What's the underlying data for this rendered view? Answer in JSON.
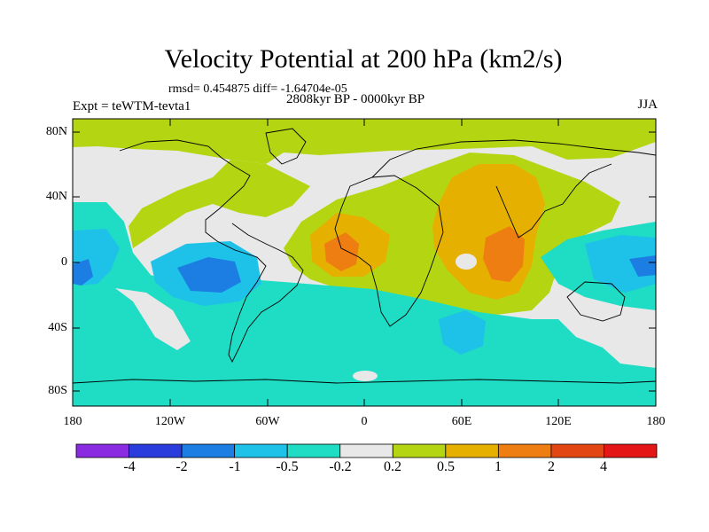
{
  "figure": {
    "title": "Velocity Potential at 200 hPa (km2/s)",
    "stats": "rmsd= 0.454875  diff= -1.64704e-05",
    "experiment": "Expt = teWTM-tevta1",
    "period": "2808kyr BP - 0000kyr BP",
    "season": "JJA"
  },
  "map": {
    "projection": "cylindrical equidistant",
    "lon_range": [
      -180,
      180
    ],
    "lat_range": [
      -90,
      90
    ],
    "lat_labels": [
      "80N",
      "40N",
      "0",
      "40S",
      "80S"
    ],
    "lon_labels": [
      "180",
      "120W",
      "60W",
      "0",
      "60E",
      "120E",
      "180"
    ],
    "field": "velocity potential difference",
    "units": "km2/s"
  },
  "colorbar": {
    "colors": [
      "#8a2be2",
      "#2a3cdc",
      "#1c7de2",
      "#1ec1e8",
      "#1fdcc4",
      "#e8e8e8",
      "#b4d612",
      "#e6b000",
      "#ee7d12",
      "#e24613",
      "#e51616"
    ],
    "labels": [
      "-4",
      "-2",
      "-1",
      "-0.5",
      "-0.2",
      "0.2",
      "0.5",
      "1",
      "2",
      "4"
    ]
  }
}
